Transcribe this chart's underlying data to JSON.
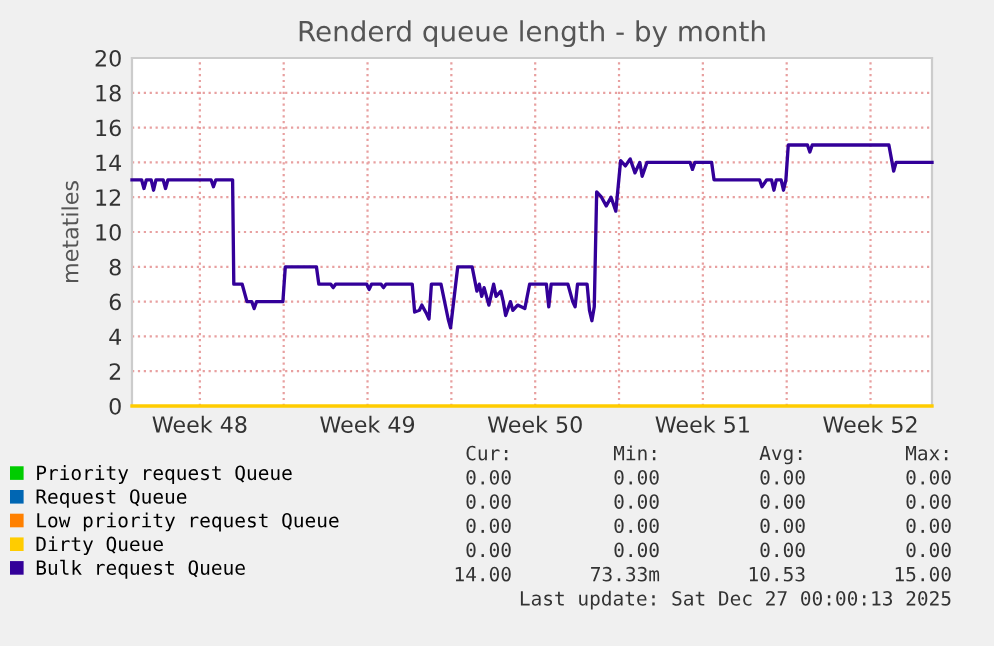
{
  "chart_data": {
    "type": "line",
    "title": "Renderd queue length - by month",
    "ylabel": "metatiles",
    "xlim": [
      "2025-11-24T16:00",
      "2025-12-28T01:36"
    ],
    "ylim": [
      0,
      20
    ],
    "xticks": [
      {
        "value": "2025-11-27T12:00",
        "label": "Week 48"
      },
      {
        "value": "2025-12-01",
        "label": null
      },
      {
        "value": "2025-12-04T12:00",
        "label": "Week 49"
      },
      {
        "value": "2025-12-08",
        "label": null
      },
      {
        "value": "2025-12-11T12:00",
        "label": "Week 50"
      },
      {
        "value": "2025-12-15",
        "label": null
      },
      {
        "value": "2025-12-18T12:00",
        "label": "Week 51"
      },
      {
        "value": "2025-12-22",
        "label": null
      },
      {
        "value": "2025-12-25T12:00",
        "label": "Week 52"
      }
    ],
    "yticks": [
      0,
      2,
      4,
      6,
      8,
      10,
      12,
      14,
      16,
      18,
      20
    ],
    "grid": true,
    "legend": "bottom",
    "marker": "none",
    "line_style": "solid",
    "series": [
      {
        "name": "Priority request Queue",
        "color": "#00cc00"
      },
      {
        "name": "Request Queue",
        "color": "#0066b3"
      },
      {
        "name": "Low priority request Queue",
        "color": "#ff8000"
      },
      {
        "name": "Dirty Queue",
        "color": "#ffcc00",
        "x": [
          "2025-11-24T16:00",
          "2025-12-28T01:36"
        ],
        "values": [
          0,
          0
        ]
      },
      {
        "name": "Bulk request Queue",
        "color": "#330099",
        "x": [
          "2025-11-24T16:00",
          "2025-11-25T01:36",
          "2025-11-25T04:00",
          "2025-11-25T06:24",
          "2025-11-25T11:12",
          "2025-11-25T13:36",
          "2025-11-25T16:00",
          "2025-11-25T23:12",
          "2025-11-26T01:36",
          "2025-11-26T04:00",
          "2025-11-27T23:12",
          "2025-11-28T01:36",
          "2025-11-28T04:00",
          "2025-11-28T20:48",
          "2025-11-28T22:00",
          "2025-11-29T06:24",
          "2025-11-29T11:12",
          "2025-11-29T16:00",
          "2025-11-29T18:24",
          "2025-11-29T20:48",
          "2025-11-30T23:12",
          "2025-12-01T01:36",
          "2025-12-02T08:48",
          "2025-12-02T11:12",
          "2025-12-02T23:12",
          "2025-12-03T01:36",
          "2025-12-03T04:00",
          "2025-12-04T11:12",
          "2025-12-04T13:36",
          "2025-12-04T16:00",
          "2025-12-05T01:36",
          "2025-12-05T04:00",
          "2025-12-05T06:24",
          "2025-12-06T08:48",
          "2025-12-06T11:12",
          "2025-12-06T16:00",
          "2025-12-06T18:24",
          "2025-12-06T23:12",
          "2025-12-07T01:36",
          "2025-12-07T04:00",
          "2025-12-07T13:36",
          "2025-12-07T20:48",
          "2025-12-07T23:12",
          "2025-12-08T06:24",
          "2025-12-08T20:48",
          "2025-12-09T01:36",
          "2025-12-09T04:00",
          "2025-12-09T06:24",
          "2025-12-09T08:48",
          "2025-12-09T13:36",
          "2025-12-09T18:24",
          "2025-12-09T20:48",
          "2025-12-10T01:36",
          "2025-12-10T04:00",
          "2025-12-10T06:24",
          "2025-12-10T11:12",
          "2025-12-10T13:36",
          "2025-12-10T18:24",
          "2025-12-11T01:36",
          "2025-12-11T06:24",
          "2025-12-11T23:12",
          "2025-12-12T01:36",
          "2025-12-12T04:00",
          "2025-12-12T20:48",
          "2025-12-13T01:36",
          "2025-12-13T04:00",
          "2025-12-13T06:24",
          "2025-12-13T16:00",
          "2025-12-13T18:24",
          "2025-12-13T20:48",
          "2025-12-13T23:12",
          "2025-12-14T01:36",
          "2025-12-14T06:24",
          "2025-12-14T11:12",
          "2025-12-14T16:00",
          "2025-12-14T20:48",
          "2025-12-15T01:36",
          "2025-12-15T06:24",
          "2025-12-15T11:12",
          "2025-12-15T16:00",
          "2025-12-15T20:48",
          "2025-12-15T23:12",
          "2025-12-16T04:00",
          "2025-12-17T23:12",
          "2025-12-18T01:36",
          "2025-12-18T04:00",
          "2025-12-18T20:48",
          "2025-12-18T23:12",
          "2025-12-20T20:48",
          "2025-12-20T23:12",
          "2025-12-21T04:00",
          "2025-12-21T08:48",
          "2025-12-21T11:12",
          "2025-12-21T13:36",
          "2025-12-21T18:24",
          "2025-12-21T20:48",
          "2025-12-21T23:12",
          "2025-12-22T01:36",
          "2025-12-22T20:48",
          "2025-12-22T23:12",
          "2025-12-23T01:36",
          "2025-12-26T06:24",
          "2025-12-26T11:12",
          "2025-12-26T13:36",
          "2025-12-28T01:36"
        ],
        "values": [
          13,
          13,
          12.5,
          13,
          13,
          12.4,
          13,
          13,
          12.5,
          13,
          13,
          12.6,
          13,
          13,
          7,
          7,
          6,
          6,
          5.6,
          6,
          6,
          8,
          8,
          7,
          7,
          6.8,
          7,
          7,
          6.7,
          7,
          7,
          6.8,
          7,
          7,
          5.4,
          5.5,
          5.8,
          5.3,
          5.0,
          7,
          7,
          5.0,
          4.5,
          8,
          8,
          6.6,
          7,
          6.3,
          6.8,
          5.8,
          7,
          6.3,
          6.6,
          6.0,
          5.2,
          6.0,
          5.5,
          5.8,
          5.6,
          7,
          7,
          5.7,
          7,
          7,
          6.0,
          5.7,
          7,
          7,
          5.5,
          4.9,
          5.7,
          12.3,
          12.0,
          11.5,
          12.0,
          11.2,
          14.1,
          13.8,
          14.2,
          13.4,
          14,
          13.2,
          14,
          14,
          13.6,
          14,
          14,
          13,
          13,
          12.6,
          13,
          13,
          12.4,
          13,
          13,
          12.4,
          13,
          15,
          15,
          14.6,
          15,
          15,
          13.5,
          14,
          14
        ]
      }
    ],
    "annotations": [
      "Cur:",
      "Min:",
      "Avg:",
      "Max:",
      "0.00",
      "0.00",
      "0.00",
      "0.00",
      "0.00",
      "0.00",
      "0.00",
      "0.00",
      "0.00",
      "0.00",
      "0.00",
      "0.00",
      "0.00",
      "0.00",
      "0.00",
      "0.00",
      "14.00",
      "73.33m",
      "10.53",
      "15.00",
      "Last update: Sat Dec 27 00:00:13 2025"
    ]
  }
}
